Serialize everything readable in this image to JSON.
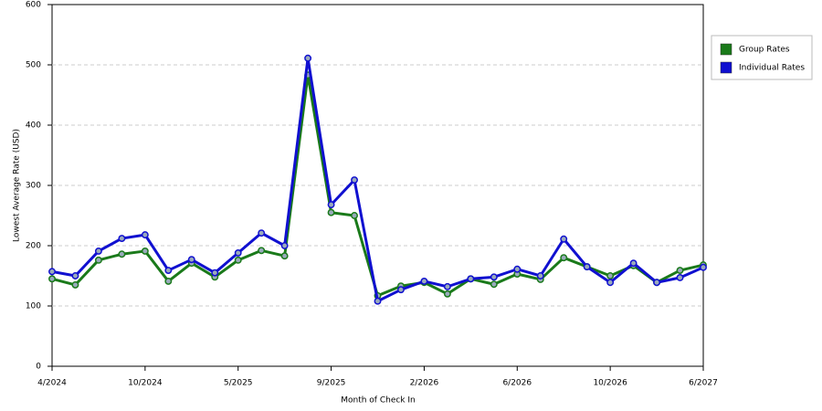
{
  "chart_data": {
    "type": "line",
    "x_label": "Month of Check In",
    "y_label": "Lowest Average Rate (USD)",
    "categories": [
      "4/2024",
      null,
      null,
      null,
      "10/2024",
      null,
      null,
      null,
      "5/2025",
      null,
      null,
      null,
      "9/2025",
      null,
      null,
      null,
      "2/2026",
      null,
      null,
      null,
      "6/2026",
      null,
      null,
      null,
      "10/2026",
      null,
      null,
      null,
      "6/2027"
    ],
    "series": [
      {
        "name": "Group Rates",
        "color": "#1a7a1a",
        "values": [
          145,
          135,
          176,
          186,
          191,
          141,
          171,
          148,
          176,
          192,
          183,
          483,
          255,
          250,
          117,
          133,
          139,
          120,
          145,
          136,
          153,
          144,
          180,
          165,
          150,
          167,
          139,
          159,
          168
        ]
      },
      {
        "name": "Individual Rates",
        "color": "#1010d0",
        "values": [
          157,
          150,
          191,
          212,
          218,
          159,
          177,
          155,
          188,
          221,
          200,
          511,
          268,
          309,
          108,
          127,
          141,
          132,
          145,
          148,
          161,
          150,
          211,
          165,
          139,
          171,
          139,
          147,
          164
        ]
      }
    ],
    "ylim": [
      0,
      600
    ],
    "yticks": [
      0,
      100,
      200,
      300,
      400,
      500,
      600
    ],
    "grid": true,
    "legend": "right"
  }
}
